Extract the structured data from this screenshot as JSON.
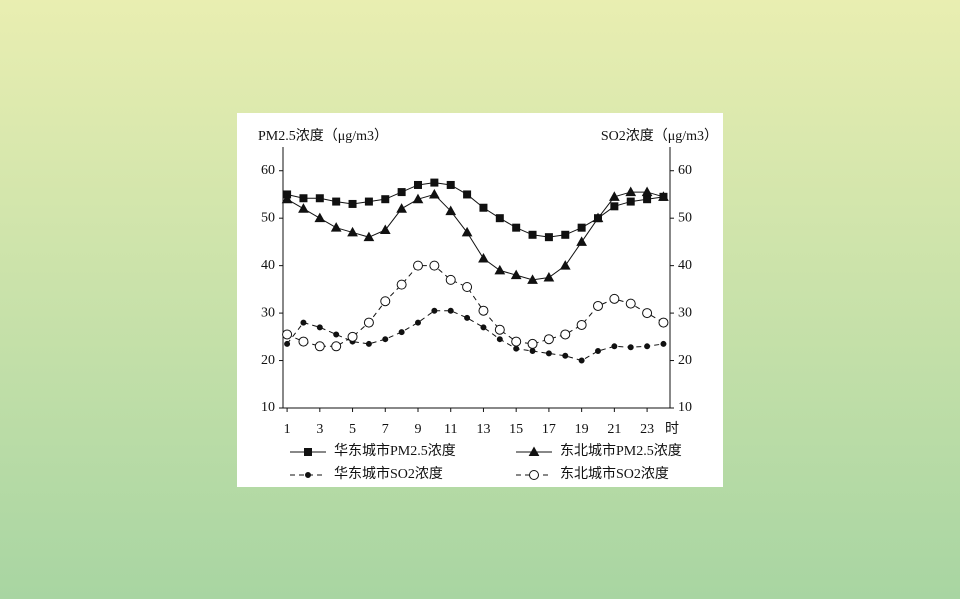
{
  "chart_data": {
    "type": "line",
    "y_label": "PM2.5浓度（μg/m3）",
    "y2_label": "SO2浓度（μg/m3）",
    "x_label": "时",
    "x": [
      1,
      2,
      3,
      4,
      5,
      6,
      7,
      8,
      9,
      10,
      11,
      12,
      13,
      14,
      15,
      16,
      17,
      18,
      19,
      20,
      21,
      22,
      23,
      24
    ],
    "xlim": [
      0.75,
      24.4
    ],
    "xticks": [
      1,
      3,
      5,
      7,
      9,
      11,
      13,
      15,
      17,
      19,
      21,
      23
    ],
    "ylim": [
      10,
      65
    ],
    "yticks": [
      10,
      20,
      30,
      40,
      50,
      60
    ],
    "y2lim": [
      10,
      65
    ],
    "y2ticks": [
      10,
      20,
      30,
      40,
      50,
      60
    ],
    "series": [
      {
        "name": "华东城市PM2.5浓度",
        "color": "#111111",
        "marker": "square",
        "dash": "solid",
        "values": [
          55,
          54.2,
          54.2,
          53.5,
          53,
          53.5,
          54,
          55.5,
          57,
          57.5,
          57,
          55,
          52.2,
          50,
          48,
          46.5,
          46,
          46.5,
          48,
          50,
          52.5,
          53.5,
          54,
          54.5
        ]
      },
      {
        "name": "东北城市PM2.5浓度",
        "color": "#111111",
        "marker": "triangle",
        "dash": "solid",
        "values": [
          54,
          52,
          50,
          48,
          47,
          46,
          47.5,
          52,
          54,
          55,
          51.5,
          47,
          41.5,
          39,
          38,
          37,
          37.5,
          40,
          45,
          50,
          54.5,
          55.5,
          55.5,
          54.5
        ]
      },
      {
        "name": "华东城市SO2浓度",
        "color": "#111111",
        "marker": "dot",
        "dash": "dashed",
        "axis": "y2",
        "values": [
          23.5,
          28,
          27,
          25.5,
          24,
          23.5,
          24.5,
          26,
          28,
          30.5,
          30.5,
          29,
          27,
          24.5,
          22.5,
          22,
          21.5,
          21,
          20,
          22,
          23,
          22.8,
          23,
          23.5
        ]
      },
      {
        "name": "东北城市SO2浓度",
        "color": "#111111",
        "marker": "circle",
        "dash": "dashed",
        "axis": "y2",
        "values": [
          25.5,
          24,
          23,
          23,
          25,
          28,
          32.5,
          36,
          40,
          40,
          37,
          35.5,
          30.5,
          26.5,
          24,
          23.5,
          24.5,
          25.5,
          27.5,
          31.5,
          33,
          32,
          30,
          28
        ]
      }
    ]
  }
}
